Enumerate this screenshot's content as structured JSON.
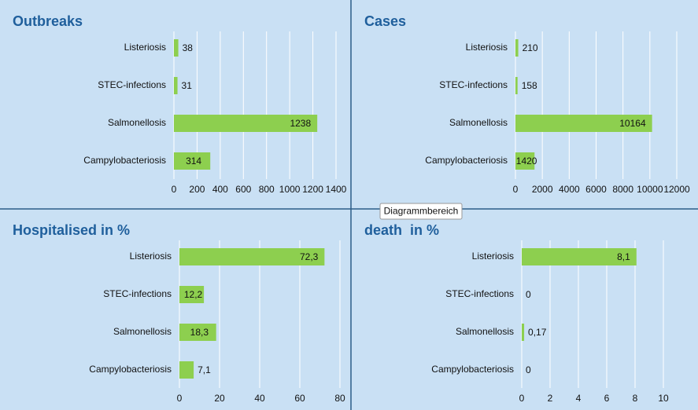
{
  "chart_data": [
    {
      "type": "bar",
      "title": "Outbreaks",
      "categories": [
        "Listeriosis",
        "STEC-infections",
        "Salmonellosis",
        "Campylobacteriosis"
      ],
      "values": [
        38,
        31,
        1238,
        314
      ],
      "color": "#8dcf4f",
      "xlim": [
        0,
        1400
      ],
      "xticks": [
        0,
        200,
        400,
        600,
        800,
        1000,
        1200,
        1400
      ],
      "grid": true
    },
    {
      "type": "bar",
      "title": "Cases",
      "categories": [
        "Listeriosis",
        "STEC-infections",
        "Salmonellosis",
        "Campylobacteriosis"
      ],
      "values": [
        210,
        158,
        10164,
        1420
      ],
      "color": "#8dcf4f",
      "xlim": [
        0,
        12000
      ],
      "xticks": [
        0,
        2000,
        4000,
        6000,
        8000,
        10000,
        12000
      ],
      "grid": true
    },
    {
      "type": "bar",
      "title": "Hospitalised in %",
      "categories": [
        "Listeriosis",
        "STEC-infections",
        "Salmonellosis",
        "Campylobacteriosis"
      ],
      "values": [
        72.3,
        12.2,
        18.3,
        7.1
      ],
      "value_labels": [
        "72,3",
        "12,2",
        "18,3",
        "7,1"
      ],
      "color": "#8dcf4f",
      "xlim": [
        0,
        80
      ],
      "xticks": [
        0,
        20,
        40,
        60,
        80
      ],
      "grid": true
    },
    {
      "type": "bar",
      "title": "death  in %",
      "categories": [
        "Listeriosis",
        "STEC-infections",
        "Salmonellosis",
        "Campylobacteriosis"
      ],
      "values": [
        8.1,
        0,
        0.17,
        0
      ],
      "value_labels": [
        "8,1",
        "0",
        "0,17",
        "0"
      ],
      "color": "#8dcf4f",
      "xlim": [
        0,
        10
      ],
      "xticks": [
        0,
        2,
        4,
        6,
        8,
        10
      ],
      "grid": true
    }
  ],
  "tooltip": "Diagrammbereich"
}
